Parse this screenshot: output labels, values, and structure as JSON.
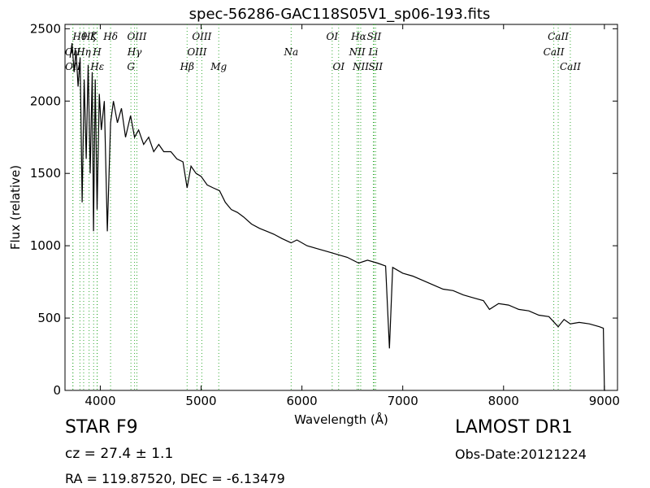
{
  "chart_data": {
    "type": "line",
    "title": "spec-56286-GAC118S05V1_sp06-193.fits",
    "xlabel": "Wavelength (Å)",
    "ylabel": "Flux (relative)",
    "xlim": [
      3650,
      9130
    ],
    "ylim": [
      0,
      2530
    ],
    "xticks": [
      4000,
      5000,
      6000,
      7000,
      8000,
      9000
    ],
    "yticks": [
      0,
      500,
      1000,
      1500,
      2000,
      2500
    ],
    "grid": false,
    "line_color": "#000000",
    "marker_color": "#33aa33",
    "series": [
      {
        "values_x": [
          3700,
          3720,
          3740,
          3760,
          3780,
          3800,
          3820,
          3840,
          3860,
          3880,
          3900,
          3920,
          3933,
          3950,
          3968,
          3990,
          4010,
          4040,
          4070,
          4102,
          4130,
          4170,
          4210,
          4250,
          4300,
          4340,
          4380,
          4430,
          4480,
          4530,
          4580,
          4630,
          4700,
          4760,
          4820,
          4861,
          4900,
          4950,
          5000,
          5060,
          5120,
          5183,
          5240,
          5300,
          5360,
          5420,
          5500,
          5580,
          5650,
          5720,
          5800,
          5893,
          5950,
          6050,
          6150,
          6250,
          6350,
          6450,
          6563,
          6650,
          6750,
          6830,
          6868,
          6900,
          7000,
          7100,
          7200,
          7300,
          7400,
          7500,
          7600,
          7700,
          7800,
          7860,
          7950,
          8050,
          8150,
          8250,
          8350,
          8450,
          8542,
          8600,
          8662,
          8750,
          8850,
          8950,
          8990,
          9000,
          9010
        ],
        "values_y": [
          2300,
          2400,
          2200,
          2350,
          2100,
          2300,
          1300,
          2150,
          1600,
          2250,
          1500,
          2200,
          1100,
          2150,
          1250,
          2050,
          1800,
          2000,
          1100,
          1850,
          2000,
          1850,
          1950,
          1750,
          1900,
          1750,
          1800,
          1700,
          1750,
          1650,
          1700,
          1650,
          1650,
          1600,
          1580,
          1400,
          1550,
          1500,
          1480,
          1420,
          1400,
          1380,
          1300,
          1250,
          1230,
          1200,
          1150,
          1120,
          1100,
          1080,
          1050,
          1020,
          1040,
          1000,
          980,
          960,
          940,
          920,
          880,
          900,
          880,
          860,
          290,
          850,
          810,
          790,
          760,
          730,
          700,
          690,
          660,
          640,
          620,
          560,
          600,
          590,
          560,
          550,
          520,
          510,
          440,
          490,
          460,
          470,
          460,
          440,
          430,
          0,
          0
        ]
      }
    ],
    "emission_lines": [
      {
        "label": "OII",
        "x": 3727,
        "row": 2
      },
      {
        "label": "OII",
        "x": 3729,
        "row": 3
      },
      {
        "label": "Hθ",
        "x": 3798,
        "row": 1
      },
      {
        "label": "Hη",
        "x": 3835,
        "row": 2
      },
      {
        "label": "Hζ",
        "x": 3889,
        "row": 1
      },
      {
        "label": "K",
        "x": 3934,
        "row": 1
      },
      {
        "label": "H",
        "x": 3968,
        "row": 2
      },
      {
        "label": "Hε",
        "x": 3970,
        "row": 3
      },
      {
        "label": "Hδ",
        "x": 4102,
        "row": 1
      },
      {
        "label": "Hγ",
        "x": 4340,
        "row": 2
      },
      {
        "label": "G",
        "x": 4304,
        "row": 3
      },
      {
        "label": "OIII",
        "x": 4363,
        "row": 1
      },
      {
        "label": "Hβ",
        "x": 4861,
        "row": 3
      },
      {
        "label": "OIII",
        "x": 4959,
        "row": 2
      },
      {
        "label": "OIII",
        "x": 5007,
        "row": 1
      },
      {
        "label": "Mg",
        "x": 5175,
        "row": 3
      },
      {
        "label": "Na",
        "x": 5893,
        "row": 2
      },
      {
        "label": "OI",
        "x": 6300,
        "row": 1
      },
      {
        "label": "OI",
        "x": 6364,
        "row": 3
      },
      {
        "label": "NII",
        "x": 6548,
        "row": 2
      },
      {
        "label": "NII",
        "x": 6583,
        "row": 3
      },
      {
        "label": "Hα",
        "x": 6563,
        "row": 1
      },
      {
        "label": "SII",
        "x": 6716,
        "row": 1
      },
      {
        "label": "Li",
        "x": 6708,
        "row": 2
      },
      {
        "label": "SII",
        "x": 6731,
        "row": 3
      },
      {
        "label": "CaII",
        "x": 8498,
        "row": 2
      },
      {
        "label": "CaII",
        "x": 8542,
        "row": 1
      },
      {
        "label": "CaII",
        "x": 8662,
        "row": 3
      }
    ]
  },
  "info": {
    "object_class": "STAR   F9",
    "survey": "LAMOST DR1",
    "redshift": "cz = 27.4  ± 1.1",
    "obs_date": "Obs-Date:20121224",
    "coords": "RA = 119.87520, DEC = -6.13479"
  }
}
